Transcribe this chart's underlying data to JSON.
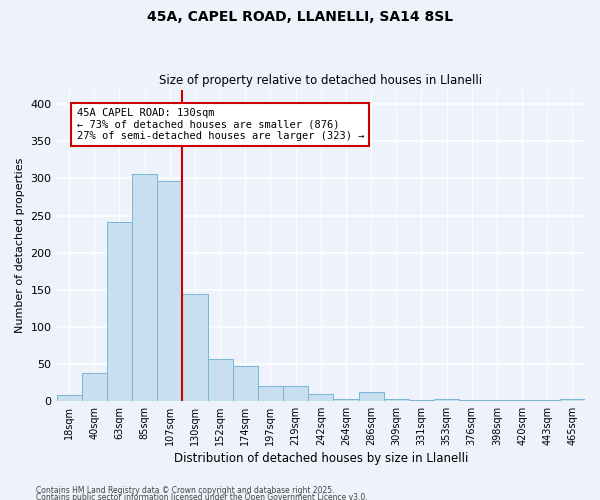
{
  "title": "45A, CAPEL ROAD, LLANELLI, SA14 8SL",
  "subtitle": "Size of property relative to detached houses in Llanelli",
  "xlabel": "Distribution of detached houses by size in Llanelli",
  "ylabel": "Number of detached properties",
  "bar_labels": [
    "18sqm",
    "40sqm",
    "63sqm",
    "85sqm",
    "107sqm",
    "130sqm",
    "152sqm",
    "174sqm",
    "197sqm",
    "219sqm",
    "242sqm",
    "264sqm",
    "286sqm",
    "309sqm",
    "331sqm",
    "353sqm",
    "376sqm",
    "398sqm",
    "420sqm",
    "443sqm",
    "465sqm"
  ],
  "bar_values": [
    8,
    37,
    241,
    306,
    296,
    144,
    56,
    47,
    20,
    20,
    9,
    2,
    12,
    2,
    1,
    3,
    1,
    1,
    1,
    1,
    3
  ],
  "bar_color": "#c8dff0",
  "bar_edge_color": "#7ab4d4",
  "vline_color": "#cc0000",
  "annotation_text": "45A CAPEL ROAD: 130sqm\n← 73% of detached houses are smaller (876)\n27% of semi-detached houses are larger (323) →",
  "annotation_box_color": "#ffffff",
  "annotation_box_edge": "#cc0000",
  "ylim": [
    0,
    420
  ],
  "yticks": [
    0,
    50,
    100,
    150,
    200,
    250,
    300,
    350,
    400
  ],
  "bg_color": "#eef2fb",
  "grid_color": "#d8dff0",
  "footnote1": "Contains HM Land Registry data © Crown copyright and database right 2025.",
  "footnote2": "Contains public sector information licensed under the Open Government Licence v3.0."
}
